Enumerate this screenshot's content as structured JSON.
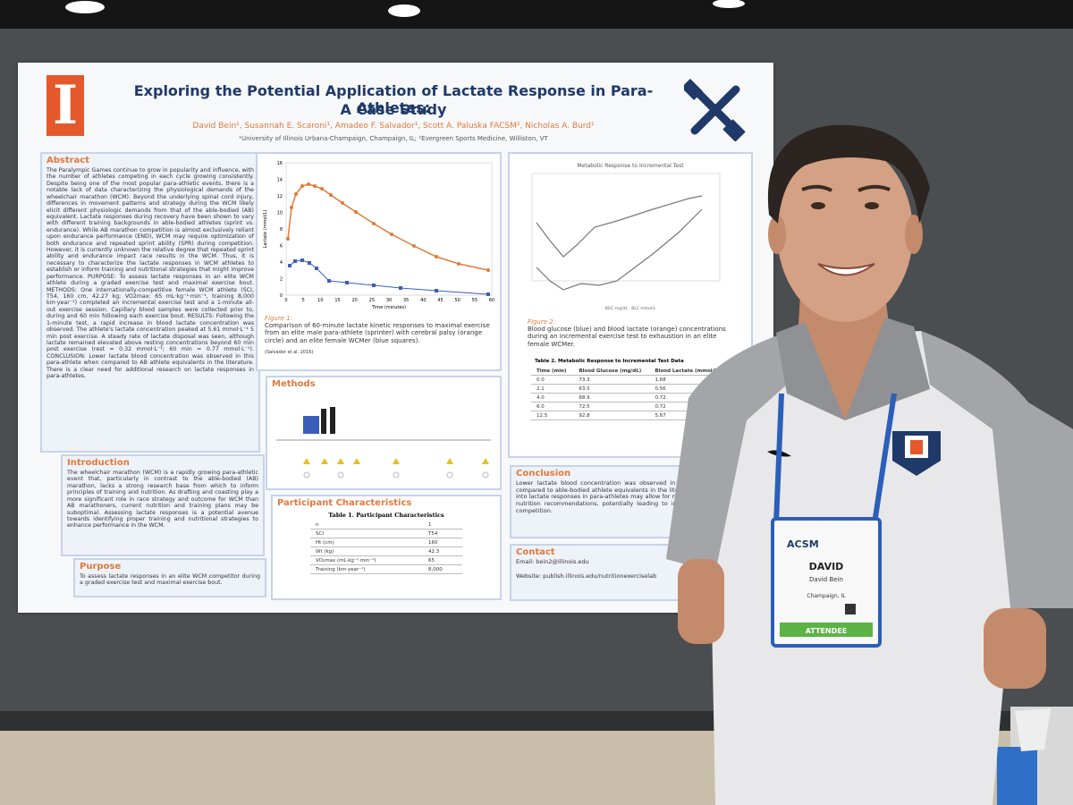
{
  "poster": {
    "title": "Exploring the Potential Application of Lactate Response in Para-Athletes:",
    "subtitle": "A Case Study",
    "logo": "I",
    "authors": "David Bein¹, Susannah E. Scaroni¹, Amadeo F. Salvador¹, Scott A. Paluska FACSM², Nicholas A. Burd¹",
    "affiliations": "¹University of Illinois Urbana-Champaign, Champaign, IL; ²Evergreen Sports Medicine, Williston, VT",
    "abstract": {
      "heading": "Abstract",
      "text": "The Paralympic Games continue to grow in popularity and influence, with the number of athletes competing in each cycle growing consistently. Despite being one of the most popular para-athletic events, there is a notable lack of data characterizing the physiological demands of the wheelchair marathon (WCM). Beyond the underlying spinal cord injury, differences in movement patterns and strategy during the WCM likely elicit different physiologic demands from that of the able-bodied (AB) equivalent. Lactate responses during recovery have been shown to vary with different training backgrounds in able-bodied athletes (sprint vs. endurance). While AB marathon competition is almost exclusively reliant upon endurance performance (END), WCM may require optimization of both endurance and repeated sprint ability (SPR) during competition. However, it is currently unknown the relative degree that repeated sprint ability and endurance impact race results in the WCM. Thus, it is necessary to characterize the lactate responses in WCM athletes to establish or inform training and nutritional strategies that might improve performance. PURPOSE: To assess lactate responses in an elite WCM athlete during a graded exercise test and maximal exercise bout. METHODS: One internationally-competitive female WCM athlete (SCI, T54, 160 cm, 42.27 kg; VO2max: 65 mL·kg⁻¹·min⁻¹, training 8,000 km·year⁻¹) completed an incremental exercise test and a 1-minute all-out exercise session. Capillary blood samples were collected prior to, during and 60 min following each exercise bout. RESULTS: Following the 1-minute test, a rapid increase in blood lactate concentration was observed. The athlete's lactate concentration peaked at 5.61 mmol·L⁻¹ 5 min post exercise. A steady rate of lactate disposal was seen, although lactate remained elevated above resting concentrations beyond 60 min post exercise (rest = 0.32 mmol·L⁻¹; 60 min = 0.77 mmol·L⁻¹). CONCLUSION: Lower lactate blood concentration was observed in this para-athlete when compared to AB athlete equivalents in the literature. There is a clear need for additional research on lactate responses in para-athletes."
    },
    "introduction": {
      "heading": "Introduction",
      "text": "The wheelchair marathon (WCM) is a rapidly growing para-athletic event that, particularly in contrast to the able-bodied (AB) marathon, lacks a strong research base from which to inform principles of training and nutrition. As drafting and coasting play a more significant role in race strategy and outcome for WCM than AB marathoners, current nutrition and training plans may be suboptimal. Assessing lactate responses is a potential avenue towards identifying proper training and nutritional strategies to enhance performance in the WCM."
    },
    "purpose": {
      "heading": "Purpose",
      "text": "To assess lactate responses in an elite WCM competitor during a graded exercise test and maximal exercise bout."
    },
    "figure1": {
      "y_label": "Lactate (mmol/L)",
      "x_label": "Time (minutes)",
      "yticks": [
        "0",
        "2",
        "4",
        "6",
        "8",
        "10",
        "12",
        "14",
        "16"
      ],
      "xticks": [
        "0",
        "5",
        "10",
        "15",
        "20",
        "25",
        "30",
        "35",
        "40",
        "45",
        "50",
        "55",
        "60"
      ],
      "label": "Figure 1:",
      "caption": "Comparison of 60-minute lactate kinetic responses to maximal exercise from an elite male para-athlete (sprinter) with cerebral palsy (orange circle) and an elite female WCMer (blue squares).",
      "citation": "(Salvador et al. 2016)"
    },
    "methods": {
      "heading": "Methods"
    },
    "participants": {
      "heading": "Participant Characteristics",
      "table_title": "Table 1. Participant Characteristics",
      "rows": [
        [
          "n",
          "1"
        ],
        [
          "SCI",
          "T54"
        ],
        [
          "Ht (cm)",
          "160"
        ],
        [
          "Wt (kg)",
          "42.3"
        ],
        [
          "VO₂max (mL·kg⁻¹·min⁻¹)",
          "65"
        ],
        [
          "Training (km·year⁻¹)",
          "8,000"
        ]
      ]
    },
    "figure2": {
      "title": "Metabolic Response to Incremental Test",
      "legend": [
        "BGC mg/dL",
        "BLC mmol/L"
      ],
      "label": "Figure 2:",
      "caption": "Blood glucose (blue) and blood lactate (orange) concentrations during an incremental exercise test to exhaustion in an elite female WCMer."
    },
    "table2": {
      "title": "Table 2. Metabolic Response to Incremental Test Data",
      "header": [
        "Time (min)",
        "Blood Glucose (mg/dL)",
        "Blood Lactate (mmol/L)"
      ],
      "rows": [
        [
          "0.0",
          "73.3",
          "1.68"
        ],
        [
          "2.1",
          "63.5",
          "0.56"
        ],
        [
          "4.0",
          "68.9",
          "0.72"
        ],
        [
          "6.0",
          "72.5",
          "0.72"
        ],
        [
          "12.5",
          "92.8",
          "5.67"
        ]
      ]
    },
    "conclusion": {
      "heading": "Conclusion",
      "text": "Lower lactate blood concentration was observed in this para-athlete when compared to able-bodied athlete equivalents in the literature. Further research into lactate responses in para-athletes may allow for more optimal training and nutrition recommendations, potentially leading to improved performance in competition."
    },
    "contact": {
      "heading": "Contact",
      "email": "Email: bein2@illinois.edu",
      "website": "Website: publish.illinois.edu/nutritionexerciselab"
    }
  },
  "badge": {
    "org": "ACSM",
    "name": "DAVID",
    "full_name": "David Bein",
    "location": "Champaign, IL",
    "role": "ATTENDEE"
  }
}
